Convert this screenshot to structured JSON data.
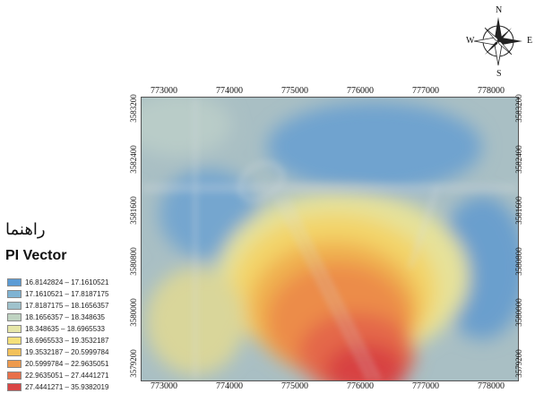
{
  "legend": {
    "title_rtl": "راهنما",
    "title": "PI Vector",
    "items": [
      {
        "label": "16.8142824 – 17.1610521",
        "color": "#5b9bd5"
      },
      {
        "label": "17.1610521 – 17.8187175",
        "color": "#7fb3d3"
      },
      {
        "label": "17.8187175 – 18.1656357",
        "color": "#9fc2cc"
      },
      {
        "label": "18.1656357 – 18.348635",
        "color": "#bfd3c1"
      },
      {
        "label": "18.348635 – 18.6965533",
        "color": "#e6e6a8"
      },
      {
        "label": "18.6965533 – 19.3532187",
        "color": "#f5e07a"
      },
      {
        "label": "19.3532187 – 20.5999784",
        "color": "#f2c15b"
      },
      {
        "label": "20.5999784 – 22.9635051",
        "color": "#ee9a4d"
      },
      {
        "label": "22.9635051 – 27.4441271",
        "color": "#e8704a"
      },
      {
        "label": "27.4441271 – 35.9382019",
        "color": "#d94545"
      }
    ]
  },
  "axes": {
    "x_top": [
      "773000",
      "774000",
      "775000",
      "776000",
      "777000",
      "778000"
    ],
    "x_bottom": [
      "773000",
      "774000",
      "775000",
      "776000",
      "777000",
      "778000"
    ],
    "y_left": [
      "3583200",
      "3582400",
      "3581600",
      "3580800",
      "3580000",
      "3579200"
    ],
    "y_right": [
      "3583200",
      "3582400",
      "3581600",
      "3580800",
      "3580000",
      "3579200"
    ]
  },
  "compass": {
    "n": "N",
    "s": "S",
    "e": "E",
    "w": "W"
  }
}
